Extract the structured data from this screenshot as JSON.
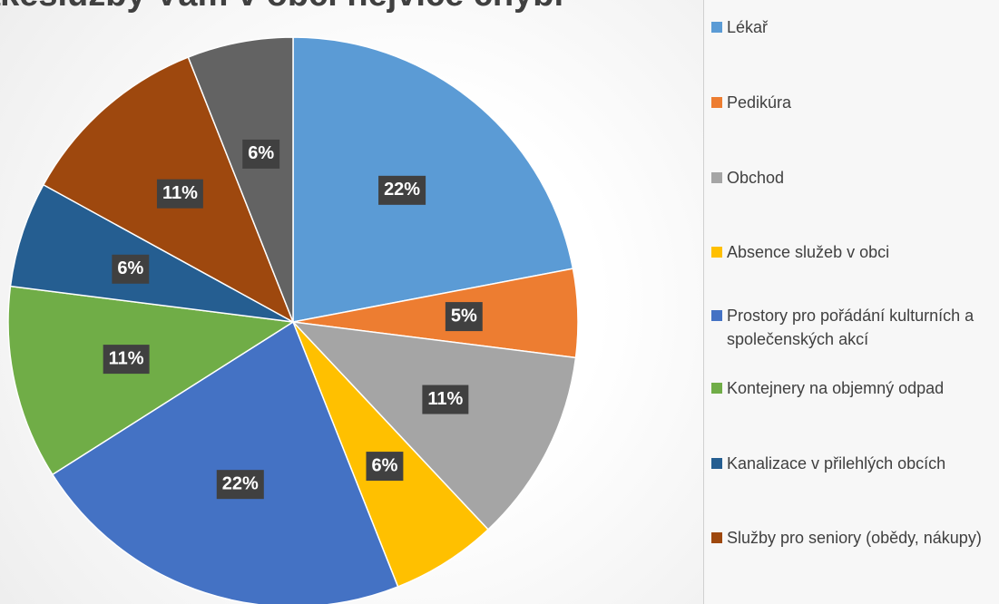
{
  "chart_data": {
    "type": "pie",
    "title": "akéslužby Vám v obci nejvíce chybí",
    "categories": [
      "Lékař",
      "Pedikúra",
      "Obchod",
      "Absence služeb v obci",
      "Prostory pro pořádání kulturních a společenských akcí",
      "Kontejnery na objemný odpad",
      "Kanalizace v přilehlých obcích",
      "Služby pro seniory (obědy, nákupy)",
      null
    ],
    "values": [
      22,
      5,
      11,
      6,
      22,
      11,
      6,
      11,
      6
    ],
    "value_labels": [
      "22%",
      "5%",
      "11%",
      "6%",
      "22%",
      "11%",
      "6%",
      "11%",
      "6%"
    ],
    "colors": [
      "#5b9bd5",
      "#ed7d31",
      "#a5a5a5",
      "#ffc000",
      "#4472c4",
      "#70ad47",
      "#255e91",
      "#9e480e",
      "#636363"
    ],
    "legend": "right"
  }
}
